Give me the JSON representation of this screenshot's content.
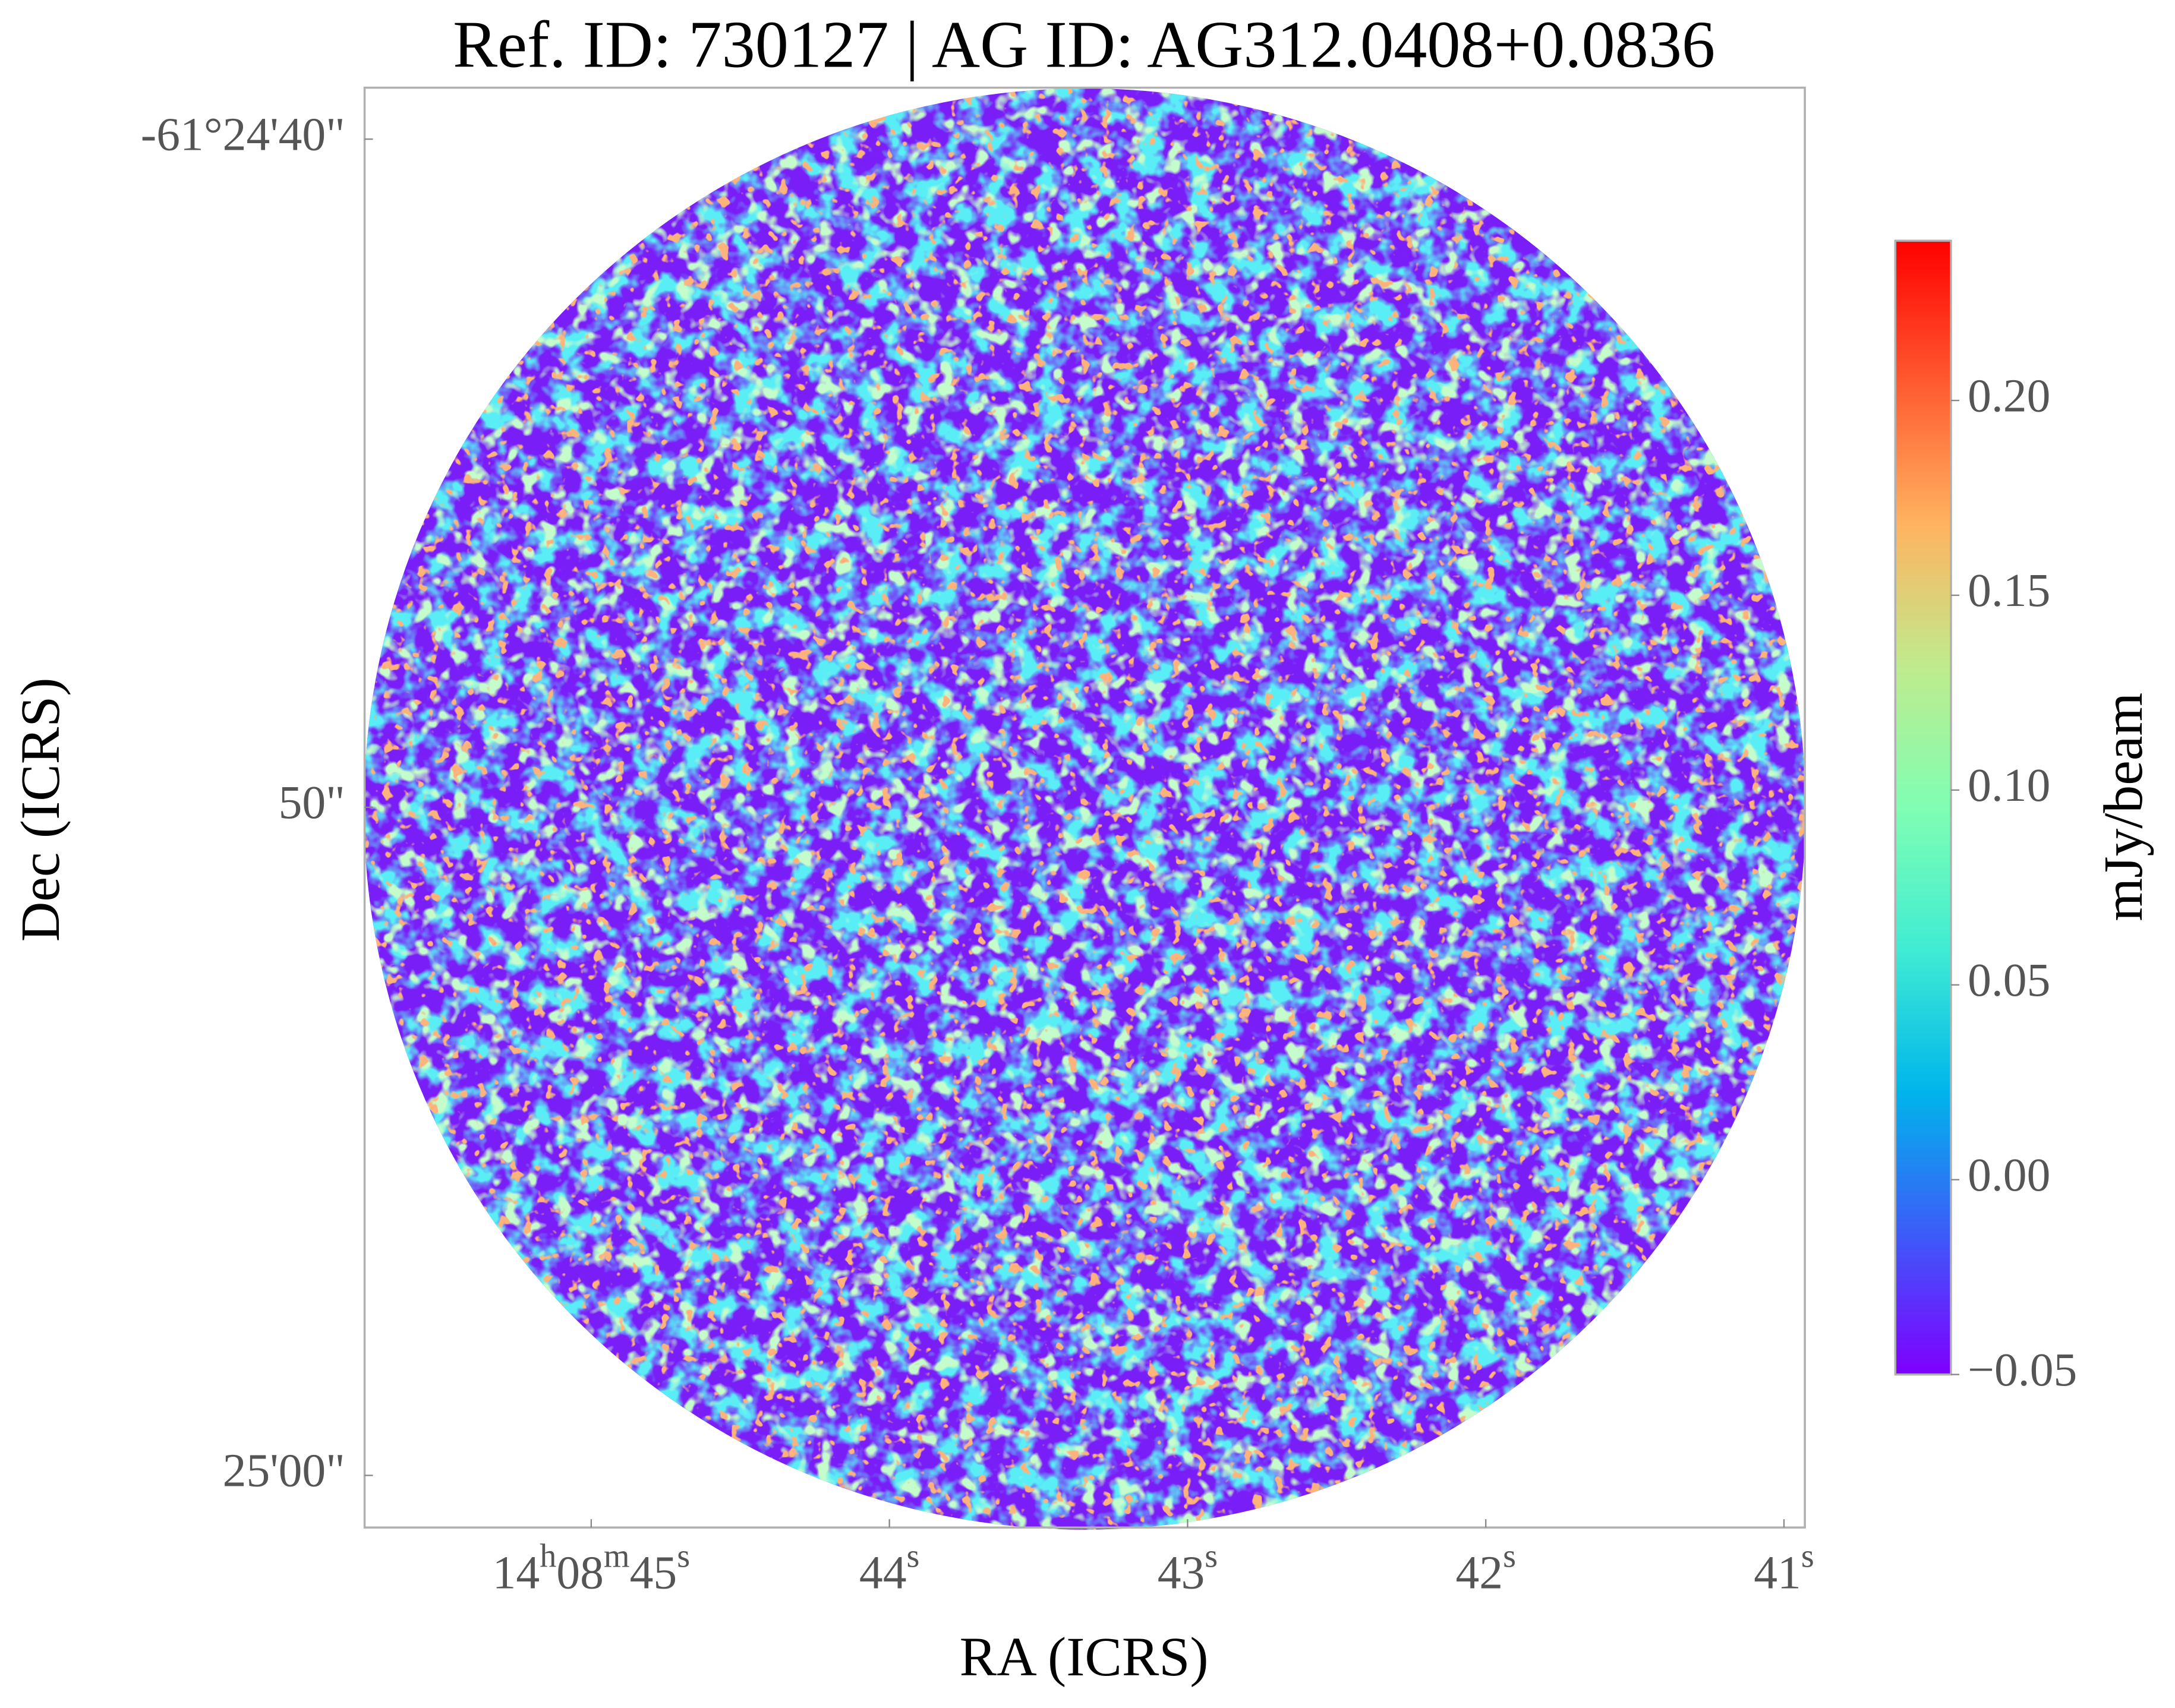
{
  "chart_data": {
    "type": "image",
    "title": "Ref. ID: 730127 | AG ID: AG312.0408+0.0836",
    "x_label": "RA (ICRS)",
    "y_label": "Dec (ICRS)",
    "colorbar_label": "mJy/beam",
    "xlim": [
      45.76,
      40.93
    ],
    "xticks": [
      {
        "value": 45,
        "label": "14h08m45s"
      },
      {
        "value": 44,
        "label": "44s"
      },
      {
        "value": 43,
        "label": "43s"
      },
      {
        "value": 42,
        "label": "42s"
      },
      {
        "value": 41,
        "label": "41s"
      }
    ],
    "ylim": [
      60.78,
      39.23
    ],
    "yticks": [
      {
        "value": 40,
        "label": "-61°24'40\""
      },
      {
        "value": 50,
        "label": "50\""
      },
      {
        "value": 60,
        "label": "25'00\""
      }
    ],
    "clim": [
      -0.05,
      0.241
    ],
    "cticks": [
      {
        "value": -0.05,
        "label": "−0.05"
      },
      {
        "value": 0.0,
        "label": "0.00"
      },
      {
        "value": 0.05,
        "label": "0.05"
      },
      {
        "value": 0.1,
        "label": "0.10"
      },
      {
        "value": 0.15,
        "label": "0.15"
      },
      {
        "value": 0.2,
        "label": "0.20"
      }
    ],
    "colormap": [
      "#7f00ff",
      "#3c5cf9",
      "#00b5eb",
      "#40ecd3",
      "#80feb3",
      "#c0eb8d",
      "#ffb360",
      "#ff5a30",
      "#ff0000"
    ]
  }
}
